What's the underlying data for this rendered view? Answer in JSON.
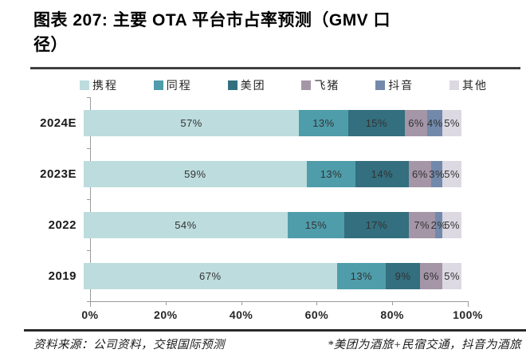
{
  "title": {
    "line1": "图表 207: 主要 OTA 平台市占率预测（GMV 口",
    "line2": "径）"
  },
  "chart_data": {
    "type": "bar",
    "orientation": "horizontal",
    "stacked": true,
    "categories": [
      "2024E",
      "2023E",
      "2022",
      "2019"
    ],
    "series": [
      {
        "name": "携程",
        "color": "#bddcde",
        "values": [
          57,
          59,
          54,
          67
        ]
      },
      {
        "name": "同程",
        "color": "#4f9dab",
        "values": [
          13,
          13,
          15,
          13
        ]
      },
      {
        "name": "美团",
        "color": "#336f7e",
        "values": [
          15,
          14,
          17,
          9
        ]
      },
      {
        "name": "飞猪",
        "color": "#a495a7",
        "values": [
          6,
          6,
          7,
          6
        ]
      },
      {
        "name": "抖音",
        "color": "#7289ab",
        "values": [
          4,
          3,
          2,
          0
        ]
      },
      {
        "name": "其他",
        "color": "#dcd9e2",
        "values": [
          5,
          5,
          5,
          5
        ]
      }
    ],
    "value_suffix": "%",
    "x_ticks": [
      "0%",
      "20%",
      "40%",
      "60%",
      "80%",
      "100%"
    ],
    "xlim": [
      0,
      100
    ],
    "legend_position": "top",
    "grid": false
  },
  "footer": {
    "source": "资料来源：公司资料，交银国际预测",
    "note": "*美团为酒旅+民宿交通，抖音为酒旅"
  }
}
